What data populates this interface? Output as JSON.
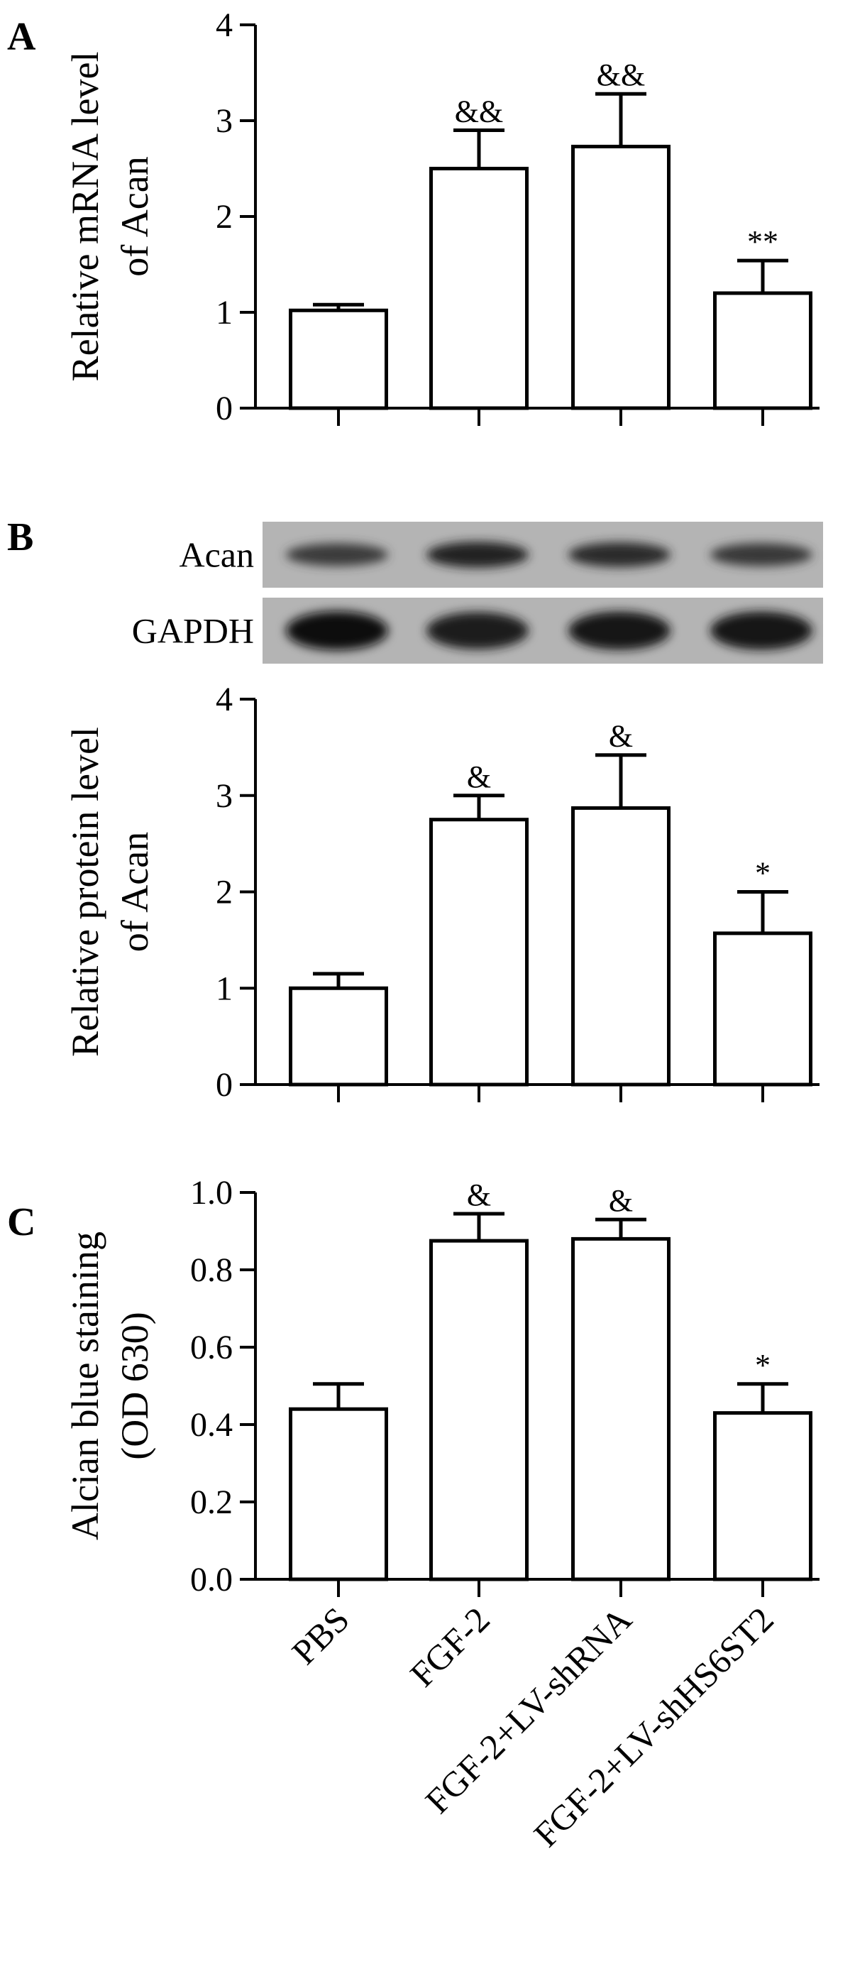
{
  "chart_data": [
    {
      "panel": "A",
      "type": "bar",
      "categories": [
        "PBS",
        "FGF-2",
        "FGF-2+LV-shRNA",
        "FGF-2+LV-shHS6ST2"
      ],
      "values": [
        1.02,
        2.5,
        2.73,
        1.2
      ],
      "errors": [
        0.06,
        0.4,
        0.55,
        0.34
      ],
      "annotations": [
        "",
        "&&",
        "&&",
        "**"
      ],
      "ylabel": [
        "Relative mRNA level",
        "of Acan"
      ],
      "ylim": [
        0,
        4
      ],
      "yticks": [
        "0",
        "1",
        "2",
        "3",
        "4"
      ],
      "ytick_values": [
        0,
        1,
        2,
        3,
        4
      ]
    },
    {
      "panel": "B",
      "type": "bar",
      "categories": [
        "PBS",
        "FGF-2",
        "FGF-2+LV-shRNA",
        "FGF-2+LV-shHS6ST2"
      ],
      "values": [
        1.0,
        2.75,
        2.87,
        1.57
      ],
      "errors": [
        0.15,
        0.25,
        0.55,
        0.43
      ],
      "annotations": [
        "",
        "&",
        "&",
        "*"
      ],
      "ylabel": [
        "Relative protein level",
        "of Acan"
      ],
      "ylim": [
        0,
        4
      ],
      "yticks": [
        "0",
        "1",
        "2",
        "3",
        "4"
      ],
      "ytick_values": [
        0,
        1,
        2,
        3,
        4
      ]
    },
    {
      "panel": "C",
      "type": "bar",
      "categories": [
        "PBS",
        "FGF-2",
        "FGF-2+LV-shRNA",
        "FGF-2+LV-shHS6ST2"
      ],
      "values": [
        0.44,
        0.875,
        0.88,
        0.43
      ],
      "errors": [
        0.065,
        0.07,
        0.05,
        0.075
      ],
      "annotations": [
        "",
        "&",
        "&",
        "*"
      ],
      "ylabel": [
        "Alcian blue staining",
        "(OD 630)"
      ],
      "ylim": [
        0,
        1
      ],
      "yticks": [
        "0.0",
        "0.2",
        "0.4",
        "0.6",
        "0.8",
        "1.0"
      ],
      "ytick_values": [
        0,
        0.2,
        0.4,
        0.6,
        0.8,
        1.0
      ]
    }
  ],
  "blot": {
    "rows": [
      {
        "label": "Acan",
        "band_intensity": [
          0.55,
          0.8,
          0.72,
          0.58
        ]
      },
      {
        "label": "GAPDH",
        "band_intensity": [
          0.95,
          0.82,
          0.9,
          0.9
        ]
      }
    ]
  }
}
